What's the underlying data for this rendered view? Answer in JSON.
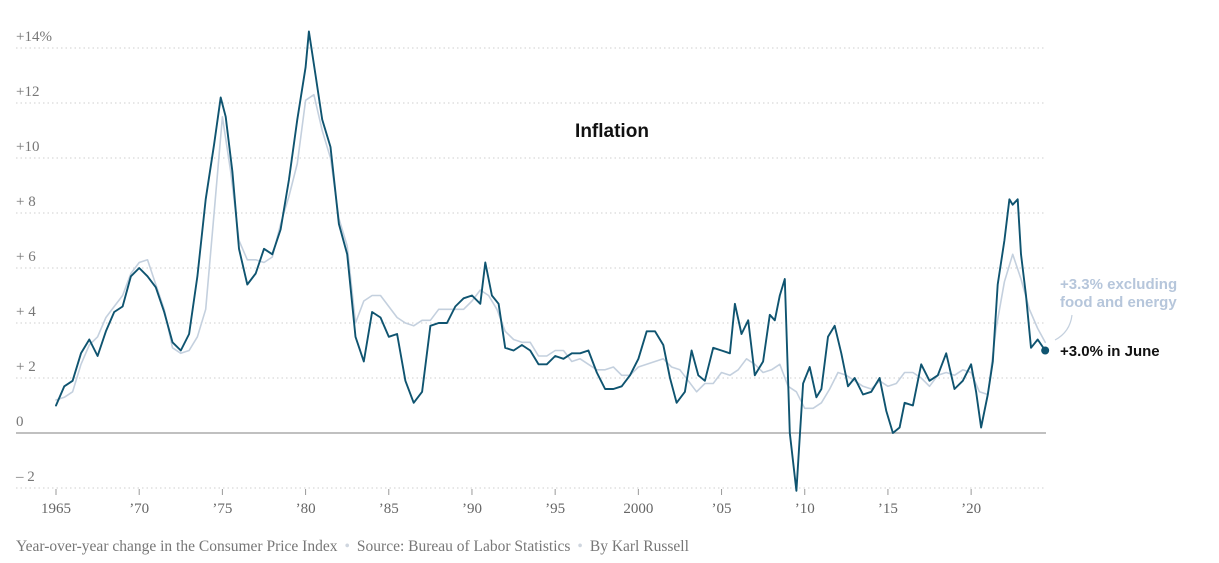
{
  "chart_data": {
    "type": "line",
    "title": "Inflation",
    "xlabel": "",
    "ylabel": "",
    "xlim": [
      1965,
      2024.5
    ],
    "ylim": [
      -2,
      14
    ],
    "grid": true,
    "y_ticks": [
      {
        "value": 14,
        "label": "+14%"
      },
      {
        "value": 12,
        "label": "+12"
      },
      {
        "value": 10,
        "label": "+10"
      },
      {
        "value": 8,
        "label": "+ 8"
      },
      {
        "value": 6,
        "label": "+ 6"
      },
      {
        "value": 4,
        "label": "+ 4"
      },
      {
        "value": 2,
        "label": "+ 2"
      },
      {
        "value": 0,
        "label": "0"
      },
      {
        "value": -2,
        "label": "– 2"
      }
    ],
    "x_ticks": [
      {
        "value": 1965,
        "label": "1965"
      },
      {
        "value": 1970,
        "label": "’70"
      },
      {
        "value": 1975,
        "label": "’75"
      },
      {
        "value": 1980,
        "label": "’80"
      },
      {
        "value": 1985,
        "label": "’85"
      },
      {
        "value": 1990,
        "label": "’90"
      },
      {
        "value": 1995,
        "label": "’95"
      },
      {
        "value": 2000,
        "label": "2000"
      },
      {
        "value": 2005,
        "label": "’05"
      },
      {
        "value": 2010,
        "label": "’10"
      },
      {
        "value": 2015,
        "label": "’15"
      },
      {
        "value": 2020,
        "label": "’20"
      }
    ],
    "series": [
      {
        "key": "headline",
        "color": "#0f5470",
        "x": [
          1965.0,
          1965.5,
          1966.0,
          1966.5,
          1967.0,
          1967.5,
          1968.0,
          1968.5,
          1969.0,
          1969.5,
          1970.0,
          1970.5,
          1971.0,
          1971.5,
          1972.0,
          1972.5,
          1973.0,
          1973.5,
          1974.0,
          1974.5,
          1974.9,
          1975.2,
          1975.6,
          1976.0,
          1976.5,
          1977.0,
          1977.5,
          1978.0,
          1978.5,
          1979.0,
          1979.5,
          1980.0,
          1980.2,
          1980.6,
          1981.0,
          1981.5,
          1982.0,
          1982.5,
          1983.0,
          1983.5,
          1984.0,
          1984.5,
          1985.0,
          1985.5,
          1986.0,
          1986.5,
          1987.0,
          1987.5,
          1988.0,
          1988.5,
          1989.0,
          1989.5,
          1990.0,
          1990.5,
          1990.8,
          1991.2,
          1991.6,
          1992.0,
          1992.5,
          1993.0,
          1993.5,
          1994.0,
          1994.5,
          1995.0,
          1995.5,
          1996.0,
          1996.5,
          1997.0,
          1997.5,
          1998.0,
          1998.5,
          1999.0,
          1999.5,
          2000.0,
          2000.5,
          2001.0,
          2001.5,
          2001.9,
          2002.3,
          2002.8,
          2003.2,
          2003.6,
          2004.0,
          2004.5,
          2005.0,
          2005.5,
          2005.8,
          2006.2,
          2006.6,
          2007.0,
          2007.5,
          2007.9,
          2008.2,
          2008.5,
          2008.8,
          2009.1,
          2009.5,
          2009.9,
          2010.3,
          2010.7,
          2011.0,
          2011.4,
          2011.8,
          2012.2,
          2012.6,
          2013.0,
          2013.5,
          2014.0,
          2014.5,
          2014.9,
          2015.3,
          2015.7,
          2016.0,
          2016.5,
          2017.0,
          2017.5,
          2018.0,
          2018.5,
          2019.0,
          2019.5,
          2020.0,
          2020.3,
          2020.6,
          2021.0,
          2021.3,
          2021.6,
          2022.0,
          2022.3,
          2022.5,
          2022.8,
          2023.0,
          2023.3,
          2023.6,
          2024.0,
          2024.45
        ],
        "y": [
          1.0,
          1.7,
          1.9,
          2.9,
          3.4,
          2.8,
          3.7,
          4.4,
          4.6,
          5.7,
          6.0,
          5.7,
          5.3,
          4.4,
          3.3,
          3.0,
          3.6,
          5.7,
          8.5,
          10.5,
          12.2,
          11.5,
          9.5,
          6.7,
          5.4,
          5.8,
          6.7,
          6.5,
          7.4,
          9.2,
          11.4,
          13.3,
          14.6,
          13.0,
          11.4,
          10.4,
          7.6,
          6.5,
          3.5,
          2.6,
          4.4,
          4.2,
          3.5,
          3.6,
          1.9,
          1.1,
          1.5,
          3.9,
          4.0,
          4.0,
          4.6,
          4.9,
          5.0,
          4.7,
          6.2,
          5.0,
          4.7,
          3.1,
          3.0,
          3.2,
          3.0,
          2.5,
          2.5,
          2.8,
          2.7,
          2.9,
          2.9,
          3.0,
          2.2,
          1.6,
          1.6,
          1.7,
          2.1,
          2.7,
          3.7,
          3.7,
          3.2,
          2.0,
          1.1,
          1.5,
          3.0,
          2.1,
          1.9,
          3.1,
          3.0,
          2.9,
          4.7,
          3.6,
          4.1,
          2.1,
          2.6,
          4.3,
          4.1,
          5.0,
          5.6,
          0.0,
          -2.1,
          1.8,
          2.4,
          1.3,
          1.6,
          3.5,
          3.9,
          2.9,
          1.7,
          2.0,
          1.4,
          1.5,
          2.0,
          0.8,
          0.0,
          0.2,
          1.1,
          1.0,
          2.5,
          1.9,
          2.1,
          2.9,
          1.6,
          1.9,
          2.5,
          1.5,
          0.2,
          1.4,
          2.6,
          5.4,
          7.0,
          8.5,
          8.3,
          8.5,
          6.5,
          5.0,
          3.1,
          3.4,
          3.0
        ]
      },
      {
        "key": "core",
        "color": "#c4d0de",
        "x": [
          1965.0,
          1965.5,
          1966.0,
          1966.5,
          1967.0,
          1967.5,
          1968.0,
          1968.5,
          1969.0,
          1969.5,
          1970.0,
          1970.5,
          1971.0,
          1971.5,
          1972.0,
          1972.5,
          1973.0,
          1973.5,
          1974.0,
          1974.5,
          1975.0,
          1975.5,
          1976.0,
          1976.5,
          1977.0,
          1977.5,
          1978.0,
          1978.5,
          1979.0,
          1979.5,
          1980.0,
          1980.5,
          1981.0,
          1981.5,
          1982.0,
          1982.5,
          1983.0,
          1983.5,
          1984.0,
          1984.5,
          1985.0,
          1985.5,
          1986.0,
          1986.5,
          1987.0,
          1987.5,
          1988.0,
          1988.5,
          1989.0,
          1989.5,
          1990.0,
          1990.5,
          1991.0,
          1991.5,
          1992.0,
          1992.5,
          1993.0,
          1993.5,
          1994.0,
          1994.5,
          1995.0,
          1995.5,
          1996.0,
          1996.5,
          1997.0,
          1997.5,
          1998.0,
          1998.5,
          1999.0,
          1999.5,
          2000.0,
          2000.5,
          2001.0,
          2001.5,
          2002.0,
          2002.5,
          2003.0,
          2003.5,
          2004.0,
          2004.5,
          2005.0,
          2005.5,
          2006.0,
          2006.5,
          2007.0,
          2007.5,
          2008.0,
          2008.5,
          2009.0,
          2009.5,
          2010.0,
          2010.5,
          2011.0,
          2011.5,
          2012.0,
          2012.5,
          2013.0,
          2013.5,
          2014.0,
          2014.5,
          2015.0,
          2015.5,
          2016.0,
          2016.5,
          2017.0,
          2017.5,
          2018.0,
          2018.5,
          2019.0,
          2019.5,
          2020.0,
          2020.5,
          2021.0,
          2021.5,
          2022.0,
          2022.5,
          2023.0,
          2023.5,
          2024.0,
          2024.45
        ],
        "y": [
          1.2,
          1.3,
          1.5,
          2.5,
          3.2,
          3.5,
          4.2,
          4.6,
          5.0,
          5.8,
          6.2,
          6.3,
          5.4,
          4.5,
          3.1,
          2.9,
          3.0,
          3.5,
          4.5,
          8.0,
          11.5,
          9.5,
          7.0,
          6.3,
          6.3,
          6.2,
          6.4,
          7.6,
          8.6,
          9.8,
          12.1,
          12.3,
          11.0,
          10.0,
          7.8,
          6.8,
          4.0,
          4.8,
          5.0,
          5.0,
          4.6,
          4.2,
          4.0,
          3.9,
          4.1,
          4.1,
          4.5,
          4.5,
          4.5,
          4.5,
          4.8,
          5.2,
          5.0,
          4.5,
          3.7,
          3.4,
          3.3,
          3.3,
          2.8,
          2.8,
          3.0,
          3.0,
          2.6,
          2.7,
          2.5,
          2.3,
          2.3,
          2.4,
          2.1,
          2.1,
          2.4,
          2.5,
          2.6,
          2.7,
          2.4,
          2.3,
          1.9,
          1.5,
          1.8,
          1.8,
          2.2,
          2.1,
          2.3,
          2.7,
          2.5,
          2.2,
          2.3,
          2.5,
          1.7,
          1.5,
          0.9,
          0.9,
          1.1,
          1.6,
          2.2,
          2.1,
          1.9,
          1.7,
          1.6,
          1.9,
          1.7,
          1.8,
          2.2,
          2.2,
          2.0,
          1.7,
          2.1,
          2.2,
          2.1,
          2.3,
          2.2,
          1.5,
          1.4,
          3.8,
          5.5,
          6.5,
          5.6,
          4.5,
          3.8,
          3.3
        ]
      }
    ],
    "annotations": {
      "headline_label": "+3.0% in June",
      "core_label_line1": "+3.3% excluding",
      "core_label_line2": "food and energy",
      "headline_end": {
        "x": 2024.45,
        "y": 3.0
      }
    }
  },
  "footer": {
    "description": "Year-over-year change in the Consumer Price Index",
    "source": "Source: Bureau of Labor Statistics",
    "byline": "By Karl Russell"
  }
}
